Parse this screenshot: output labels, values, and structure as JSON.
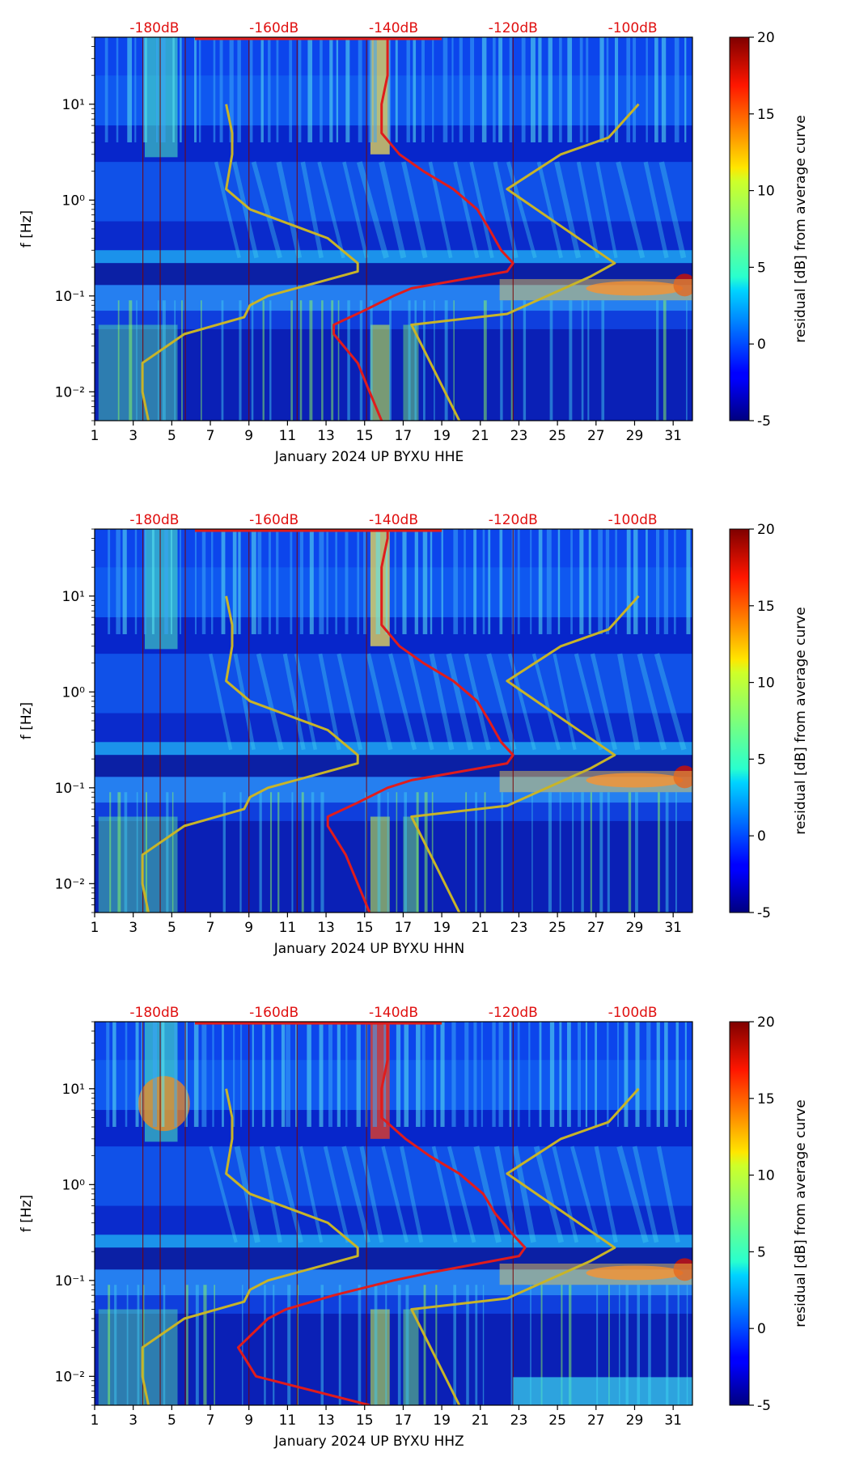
{
  "chart_data": [
    {
      "type": "heatmap",
      "title": "",
      "xlabel": "January 2024 UP BYXU  HHE",
      "ylabel": "f [Hz]",
      "x_ticks": [
        "1",
        "3",
        "5",
        "7",
        "9",
        "11",
        "13",
        "15",
        "17",
        "19",
        "21",
        "23",
        "25",
        "27",
        "29",
        "31"
      ],
      "x_range": [
        1,
        32
      ],
      "y_ticks": [
        "10⁻²",
        "10⁻¹",
        "10⁰",
        "10¹"
      ],
      "y_range_hz": [
        0.005,
        50
      ],
      "db_ticks": [
        "-180dB",
        "-160dB",
        "-140dB",
        "-120dB",
        "-100dB"
      ],
      "colorbar": {
        "label": "residual [dB] from average curve",
        "ticks": [
          "-5",
          "0",
          "5",
          "10",
          "15",
          "20"
        ],
        "range": [
          -5,
          20
        ]
      },
      "series": [
        {
          "name": "average curve",
          "color": "#e01c1c",
          "freq_hz": [
            50,
            40,
            20,
            10,
            5,
            3,
            2,
            1.3,
            0.8,
            0.5,
            0.3,
            0.22,
            0.18,
            0.12,
            0.1,
            0.07,
            0.05,
            0.04,
            0.02,
            0.01,
            0.005
          ],
          "db": [
            -141,
            -141,
            -141,
            -142,
            -142,
            -139,
            -135,
            -130,
            -126,
            -124,
            -122,
            -120,
            -121,
            -137,
            -140,
            -145,
            -150,
            -150,
            -146,
            -144,
            -142
          ]
        },
        {
          "name": "low/high noise model",
          "color": "#c8b428",
          "freq_hz": [
            10,
            5,
            3,
            1.3,
            0.8,
            0.4,
            0.22,
            0.18,
            0.1,
            0.08,
            0.06,
            0.04,
            0.02,
            0.01,
            0.005
          ],
          "db": [
            -168,
            -167,
            -167,
            -168,
            -164,
            -151,
            -146,
            -146,
            -161,
            -164,
            -165,
            -175,
            -182,
            -182,
            -181
          ]
        },
        {
          "name": "high noise model",
          "color": "#c8b428",
          "freq_hz": [
            10,
            4.5,
            3,
            1.3,
            0.22,
            0.16,
            0.065,
            0.05,
            0.005
          ],
          "db": [
            -99,
            -104,
            -112,
            -121,
            -103,
            -107,
            -121,
            -137,
            -129
          ]
        }
      ]
    },
    {
      "type": "heatmap",
      "title": "",
      "xlabel": "January 2024 UP BYXU  HHN",
      "ylabel": "f [Hz]",
      "x_ticks": [
        "1",
        "3",
        "5",
        "7",
        "9",
        "11",
        "13",
        "15",
        "17",
        "19",
        "21",
        "23",
        "25",
        "27",
        "29",
        "31"
      ],
      "x_range": [
        1,
        32
      ],
      "y_ticks": [
        "10⁻²",
        "10⁻¹",
        "10⁰",
        "10¹"
      ],
      "y_range_hz": [
        0.005,
        50
      ],
      "db_ticks": [
        "-180dB",
        "-160dB",
        "-140dB",
        "-120dB",
        "-100dB"
      ],
      "colorbar": {
        "label": "residual [dB] from average curve",
        "ticks": [
          "-5",
          "0",
          "5",
          "10",
          "15",
          "20"
        ],
        "range": [
          -5,
          20
        ]
      },
      "series": [
        {
          "name": "average curve",
          "color": "#e01c1c",
          "freq_hz": [
            50,
            40,
            20,
            10,
            5,
            3,
            2,
            1.3,
            0.8,
            0.5,
            0.3,
            0.22,
            0.18,
            0.12,
            0.1,
            0.07,
            0.05,
            0.04,
            0.02,
            0.01,
            0.005
          ],
          "db": [
            -141,
            -141,
            -142,
            -142,
            -142,
            -139,
            -135,
            -130,
            -126,
            -124,
            -122,
            -120,
            -121,
            -137,
            -141,
            -146,
            -151,
            -151,
            -148,
            -146,
            -144
          ]
        },
        {
          "name": "low/high noise model",
          "color": "#c8b428",
          "freq_hz": [
            10,
            5,
            3,
            1.3,
            0.8,
            0.4,
            0.22,
            0.18,
            0.1,
            0.08,
            0.06,
            0.04,
            0.02,
            0.01,
            0.005
          ],
          "db": [
            -168,
            -167,
            -167,
            -168,
            -164,
            -151,
            -146,
            -146,
            -161,
            -164,
            -165,
            -175,
            -182,
            -182,
            -181
          ]
        },
        {
          "name": "high noise model",
          "color": "#c8b428",
          "freq_hz": [
            10,
            4.5,
            3,
            1.3,
            0.22,
            0.16,
            0.065,
            0.05,
            0.005
          ],
          "db": [
            -99,
            -104,
            -112,
            -121,
            -103,
            -107,
            -121,
            -137,
            -129
          ]
        }
      ]
    },
    {
      "type": "heatmap",
      "title": "",
      "xlabel": "January 2024 UP BYXU  HHZ",
      "ylabel": "f [Hz]",
      "x_ticks": [
        "1",
        "3",
        "5",
        "7",
        "9",
        "11",
        "13",
        "15",
        "17",
        "19",
        "21",
        "23",
        "25",
        "27",
        "29",
        "31"
      ],
      "x_range": [
        1,
        32
      ],
      "y_ticks": [
        "10⁻²",
        "10⁻¹",
        "10⁰",
        "10¹"
      ],
      "y_range_hz": [
        0.005,
        50
      ],
      "db_ticks": [
        "-180dB",
        "-160dB",
        "-140dB",
        "-120dB",
        "-100dB"
      ],
      "colorbar": {
        "label": "residual [dB] from average curve",
        "ticks": [
          "-5",
          "0",
          "5",
          "10",
          "15",
          "20"
        ],
        "range": [
          -5,
          20
        ]
      },
      "series": [
        {
          "name": "average curve",
          "color": "#e01c1c",
          "freq_hz": [
            50,
            40,
            20,
            10,
            5,
            3,
            2,
            1.3,
            0.8,
            0.5,
            0.3,
            0.22,
            0.18,
            0.12,
            0.1,
            0.07,
            0.05,
            0.04,
            0.02,
            0.01,
            0.005
          ],
          "db": [
            -141,
            -141,
            -141,
            -142,
            -142,
            -138,
            -134,
            -129,
            -125,
            -123,
            -120,
            -118,
            -119,
            -134,
            -140,
            -150,
            -158,
            -161,
            -166,
            -163,
            -144
          ]
        },
        {
          "name": "low/high noise model",
          "color": "#c8b428",
          "freq_hz": [
            10,
            5,
            3,
            1.3,
            0.8,
            0.4,
            0.22,
            0.18,
            0.1,
            0.08,
            0.06,
            0.04,
            0.02,
            0.01,
            0.005
          ],
          "db": [
            -168,
            -167,
            -167,
            -168,
            -164,
            -151,
            -146,
            -146,
            -161,
            -164,
            -165,
            -175,
            -182,
            -182,
            -181
          ]
        },
        {
          "name": "high noise model",
          "color": "#c8b428",
          "freq_hz": [
            10,
            4.5,
            3,
            1.3,
            0.22,
            0.16,
            0.065,
            0.05,
            0.005
          ],
          "db": [
            -99,
            -104,
            -112,
            -121,
            -103,
            -107,
            -121,
            -137,
            -129
          ]
        }
      ]
    }
  ]
}
